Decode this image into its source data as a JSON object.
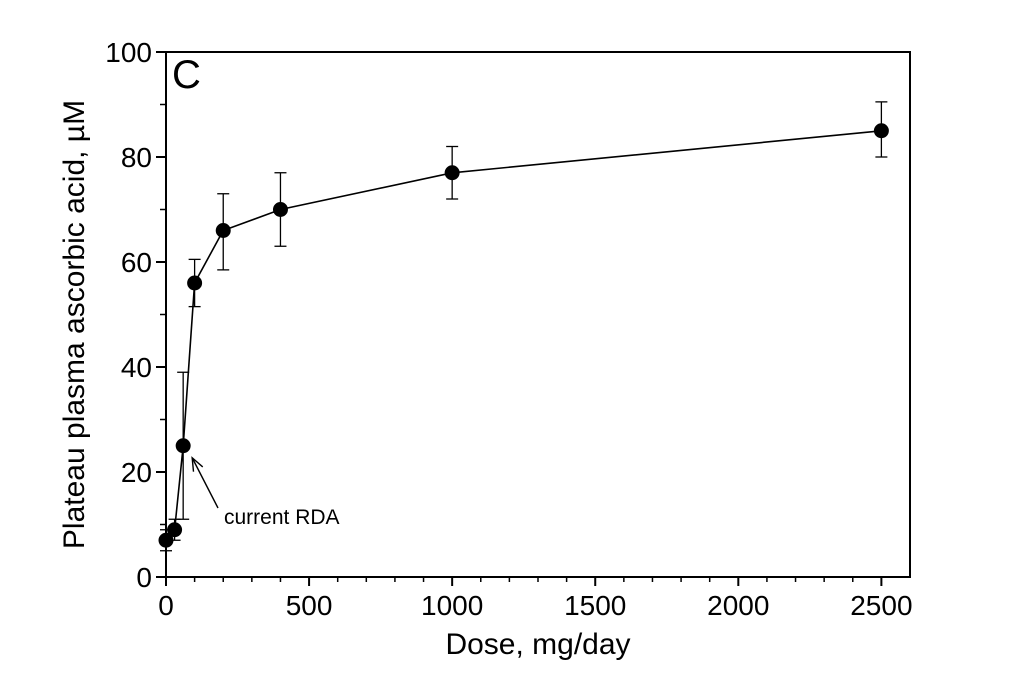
{
  "chart_data": {
    "type": "scatter",
    "panel_label": "C",
    "xlabel": "Dose, mg/day",
    "ylabel": "Plateau plasma ascorbic acid, µM",
    "xlim": [
      0,
      2600
    ],
    "ylim": [
      0,
      100
    ],
    "x_ticks": [
      0,
      500,
      1000,
      1500,
      2000,
      2500
    ],
    "y_ticks": [
      0,
      20,
      40,
      60,
      80,
      100
    ],
    "grid": false,
    "legend": "none",
    "series": [
      {
        "points": [
          {
            "x": 0,
            "y": 7,
            "err_low": 5,
            "err_high": 9
          },
          {
            "x": 30,
            "y": 9,
            "err_low": 7,
            "err_high": 11
          },
          {
            "x": 60,
            "y": 25,
            "err_low": 11,
            "err_high": 39
          },
          {
            "x": 100,
            "y": 56,
            "err_low": 51.5,
            "err_high": 60.5
          },
          {
            "x": 200,
            "y": 66,
            "err_low": 58.5,
            "err_high": 73
          },
          {
            "x": 400,
            "y": 70,
            "err_low": 63,
            "err_high": 77
          },
          {
            "x": 1000,
            "y": 77,
            "err_low": 72,
            "err_high": 82
          },
          {
            "x": 2500,
            "y": 85,
            "err_low": 80,
            "err_high": 90.5
          }
        ]
      }
    ],
    "annotations": [
      {
        "text": "current RDA",
        "points_to": {
          "x": 60,
          "y": 25
        }
      }
    ]
  }
}
